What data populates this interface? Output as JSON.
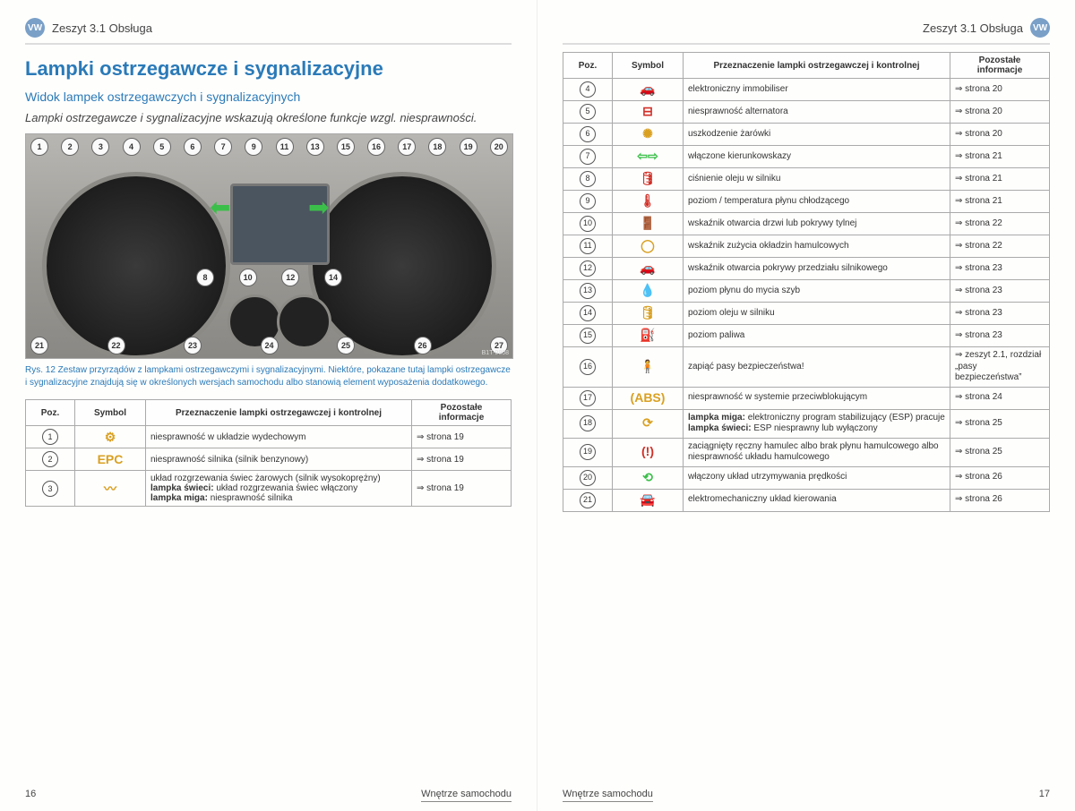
{
  "chapter": "Zeszyt 3.1  Obsługa",
  "title": "Lampki ostrzegawcze i sygnalizacyjne",
  "subtitle": "Widok lampek ostrzegawczych i sygnalizacyjnych",
  "lead": "Lampki ostrzegawcze i sygnalizacyjne wskazują określone funkcje wzgl. niesprawności.",
  "figure_code": "B1T-0808",
  "caption": "Rys. 12   Zestaw przyrządów z lampkami ostrzegawczymi i sygnalizacyjnymi. Niektóre, pokazane tutaj lampki ostrzegawcze i sygnalizacyjne znajdują się w określonych wersjach samochodu albo stanowią element wyposażenia dodatkowego.",
  "callouts_top": [
    "1",
    "2",
    "3",
    "4",
    "5",
    "6",
    "7",
    "9",
    "11",
    "13",
    "15",
    "16",
    "17",
    "18",
    "19",
    "20"
  ],
  "callouts_mid": [
    "8",
    "10",
    "12",
    "14"
  ],
  "callouts_bottom": [
    "21",
    "22",
    "23",
    "24",
    "25",
    "26",
    "27"
  ],
  "table_headers": {
    "pos": "Poz.",
    "sym": "Symbol",
    "desc": "Przeznaczenie lampki ostrzegawczej i kontrolnej",
    "info": "Pozostałe informacje"
  },
  "left_rows": [
    {
      "pos": "1",
      "sym": "⚙",
      "color": "#d9a021",
      "desc": "niesprawność w układzie wydechowym",
      "info": "⇒ strona 19"
    },
    {
      "pos": "2",
      "sym": "EPC",
      "color": "#d9a021",
      "desc": "niesprawność silnika (silnik benzynowy)",
      "info": "⇒ strona 19"
    },
    {
      "pos": "3",
      "sym": "〰",
      "color": "#d9a021",
      "desc": "układ rozgrzewania świec żarowych (silnik wysokoprężny)\n<b>lampka świeci:</b> układ rozgrzewania świec włączony\n<b>lampka miga:</b> niesprawność silnika",
      "info": "⇒ strona 19"
    }
  ],
  "right_rows": [
    {
      "pos": "4",
      "sym": "🚗",
      "color": "#d9a021",
      "desc": "elektroniczny immobiliser",
      "info": "⇒ strona 20"
    },
    {
      "pos": "5",
      "sym": "⊟",
      "color": "#d13027",
      "desc": "niesprawność alternatora",
      "info": "⇒ strona 20"
    },
    {
      "pos": "6",
      "sym": "✺",
      "color": "#d9a021",
      "desc": "uszkodzenie żarówki",
      "info": "⇒ strona 20"
    },
    {
      "pos": "7",
      "sym": "⇦⇨",
      "color": "#3cbf4a",
      "desc": "włączone kierunkowskazy",
      "info": "⇒ strona 21"
    },
    {
      "pos": "8",
      "sym": "🛢",
      "color": "#d13027",
      "desc": "ciśnienie oleju w silniku",
      "info": "⇒ strona 21"
    },
    {
      "pos": "9",
      "sym": "🌡",
      "color": "#d13027",
      "desc": "poziom / temperatura płynu chłodzącego",
      "info": "⇒ strona 21"
    },
    {
      "pos": "10",
      "sym": "🚪",
      "color": "#d13027",
      "desc": "wskaźnik otwarcia drzwi lub pokrywy tylnej",
      "info": "⇒ strona 22"
    },
    {
      "pos": "11",
      "sym": "◯",
      "color": "#d9a021",
      "desc": "wskaźnik zużycia okładzin hamulcowych",
      "info": "⇒ strona 22"
    },
    {
      "pos": "12",
      "sym": "🚗",
      "color": "#d13027",
      "desc": "wskaźnik otwarcia pokrywy przedziału silnikowego",
      "info": "⇒ strona 23"
    },
    {
      "pos": "13",
      "sym": "💧",
      "color": "#d9a021",
      "desc": "poziom płynu do mycia szyb",
      "info": "⇒ strona 23"
    },
    {
      "pos": "14",
      "sym": "🛢",
      "color": "#d9a021",
      "desc": "poziom oleju w silniku",
      "info": "⇒ strona 23"
    },
    {
      "pos": "15",
      "sym": "⛽",
      "color": "#d9a021",
      "desc": "poziom paliwa",
      "info": "⇒ strona 23"
    },
    {
      "pos": "16",
      "sym": "🧍",
      "color": "#d13027",
      "desc": "zapiąć pasy bezpieczeństwa!",
      "info": "⇒ zeszyt 2.1, rozdział „pasy bezpieczeństwa”"
    },
    {
      "pos": "17",
      "sym": "(ABS)",
      "color": "#d9a021",
      "desc": "niesprawność w systemie przeciwblokującym",
      "info": "⇒ strona 24"
    },
    {
      "pos": "18",
      "sym": "⟳",
      "color": "#d9a021",
      "desc": "<b>lampka miga:</b> elektroniczny program stabilizujący (ESP) pracuje\n<b>lampka świeci:</b> ESP niesprawny lub wyłączony",
      "info": "⇒ strona 25"
    },
    {
      "pos": "19",
      "sym": "(!)",
      "color": "#d13027",
      "desc": "zaciągnięty ręczny hamulec albo brak płynu hamulcowego albo niesprawność układu hamulcowego",
      "info": "⇒ strona 25"
    },
    {
      "pos": "20",
      "sym": "⟲",
      "color": "#3cbf4a",
      "desc": "włączony układ utrzymywania prędkości",
      "info": "⇒ strona 26"
    },
    {
      "pos": "21",
      "sym": "🚘",
      "color": "#d13027",
      "desc": "elektromechaniczny układ kierowania",
      "info": "⇒ strona 26"
    }
  ],
  "footer_section": "Wnętrze samochodu",
  "page_left_num": "16",
  "page_right_num": "17"
}
